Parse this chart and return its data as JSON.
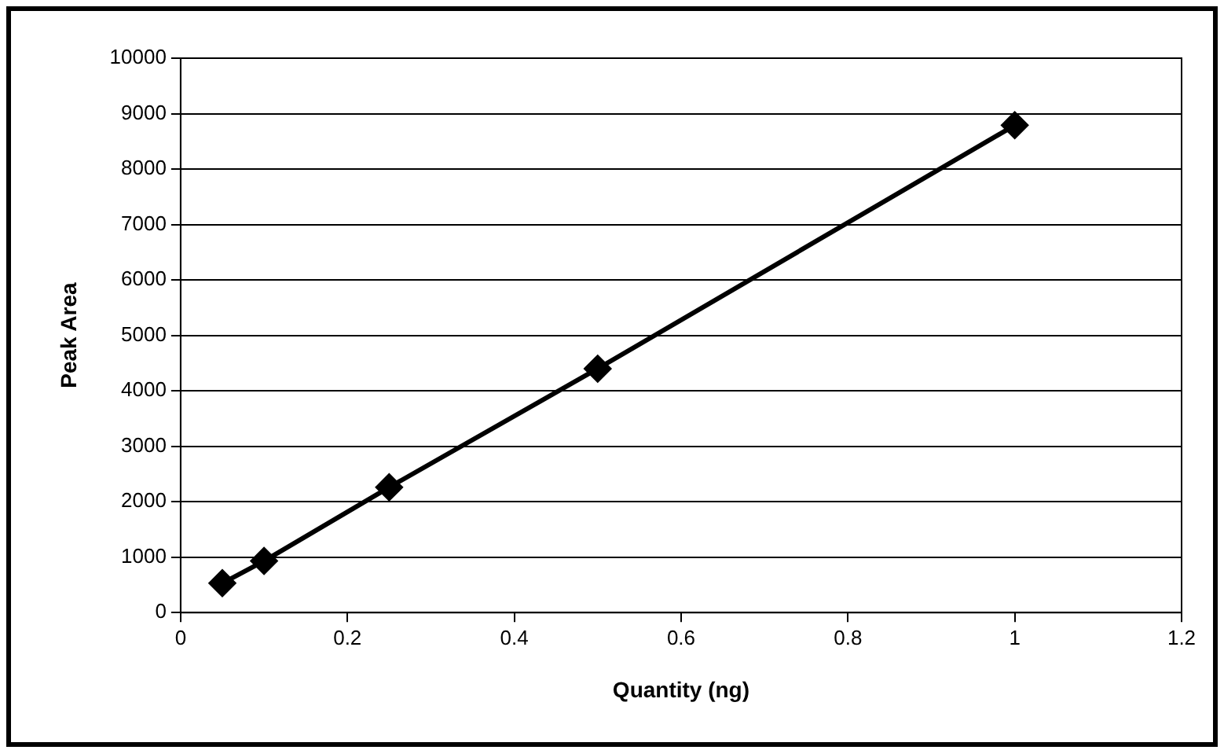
{
  "chart_data": {
    "type": "line",
    "xlabel": "Quantity (ng)",
    "ylabel": "Peak Area",
    "x": [
      0.05,
      0.1,
      0.25,
      0.5,
      1
    ],
    "series": [
      {
        "color": "#000000",
        "values": [
          530,
          930,
          2260,
          4400,
          8790
        ]
      }
    ],
    "xlim": [
      0,
      1.2
    ],
    "xticks": [
      0,
      0.2,
      0.4,
      0.6,
      0.8,
      1,
      1.2
    ],
    "ylim": [
      0,
      10000
    ],
    "yticks": [
      0,
      1000,
      2000,
      3000,
      4000,
      5000,
      6000,
      7000,
      8000,
      9000,
      10000
    ],
    "grid": "y",
    "legend": false,
    "marker": "diamond",
    "line_style": "solid"
  }
}
